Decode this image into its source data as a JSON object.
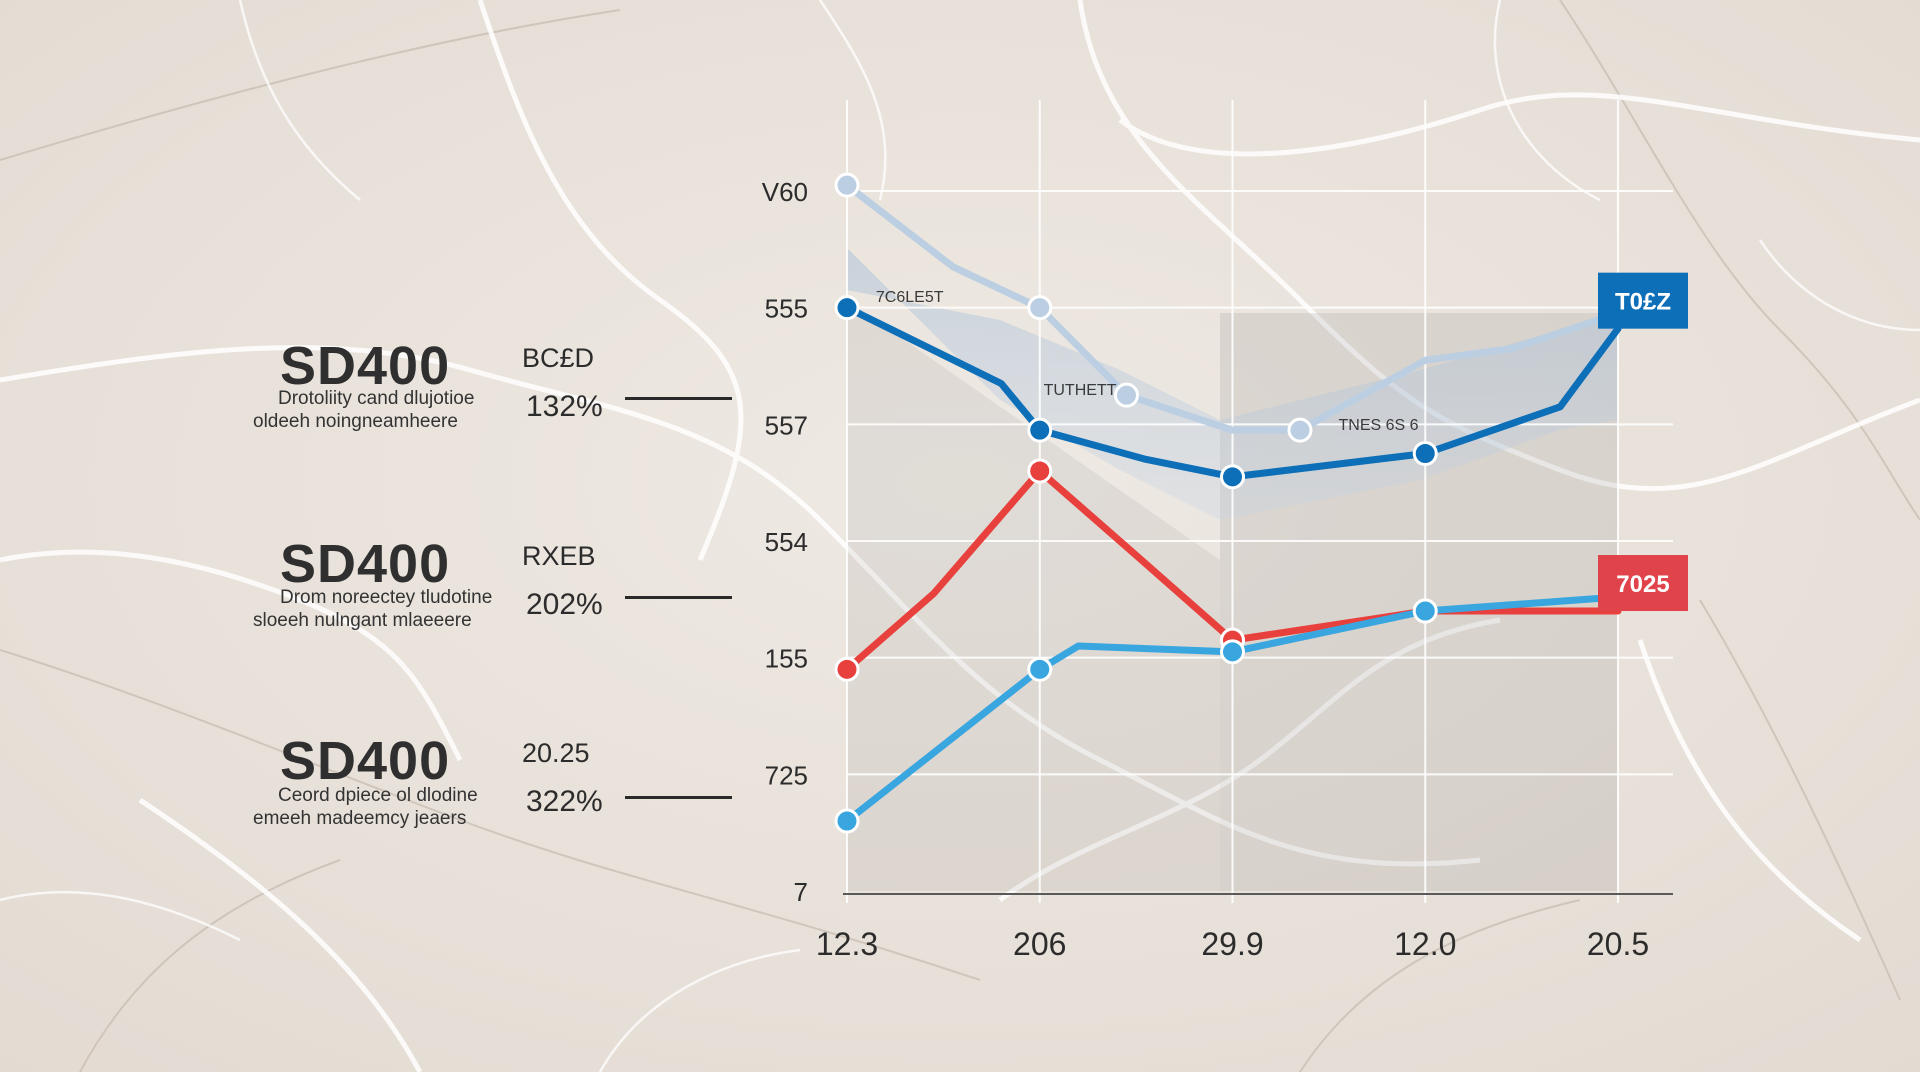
{
  "kpis": [
    {
      "title": "SD400",
      "code": "BC£D",
      "desc_line1": "Drotoliity cand dlujotioe",
      "desc_line2": "oldeeh noingneamheere",
      "percent": "132%"
    },
    {
      "title": "SD400",
      "code": "RXEB",
      "desc_line1": "Drom noreectey tludotine",
      "desc_line2": "sloeeh nulngant mlaeeere",
      "percent": "202%"
    },
    {
      "title": "SD400",
      "code": "20.25",
      "desc_line1": "Ceord dpiece ol dlodine",
      "desc_line2": "emeeh madeemcy jeaers",
      "percent": "322%"
    }
  ],
  "chart_data": {
    "type": "line",
    "title": "",
    "xlabel": "",
    "ylabel": "",
    "ylim": [
      0,
      6
    ],
    "y_ticks": [
      {
        "label": "7",
        "value": 0
      },
      {
        "label": "725",
        "value": 1
      },
      {
        "label": "155",
        "value": 2
      },
      {
        "label": "554",
        "value": 3
      },
      {
        "label": "557",
        "value": 4
      },
      {
        "label": "555",
        "value": 5
      },
      {
        "label": "V60",
        "value": 6
      }
    ],
    "categories": [
      "12.3",
      "206",
      "29.9",
      "12.0",
      "20.5"
    ],
    "x_ticks": [
      "12.3",
      "206",
      "29.9",
      "12.0",
      "20.5"
    ],
    "xlim": [
      0,
      4
    ],
    "grid": true,
    "series": [
      {
        "name": "light blue",
        "color": "#bccfe2",
        "x": [
          0,
          0.55,
          1,
          1.45,
          2,
          2.35,
          3,
          3.45,
          4
        ],
        "y": [
          6.05,
          5.35,
          5.0,
          4.25,
          3.95,
          3.95,
          4.55,
          4.65,
          4.95
        ],
        "markers": [
          0,
          2,
          3,
          5,
          8
        ]
      },
      {
        "name": "dark blue",
        "color": "#0d6fb8",
        "x": [
          0,
          0.8,
          1,
          1.55,
          2,
          3,
          3.7,
          4
        ],
        "y": [
          5.0,
          4.35,
          3.95,
          3.7,
          3.55,
          3.75,
          4.15,
          4.82
        ],
        "markers": [
          0,
          2,
          4,
          5
        ]
      },
      {
        "name": "red",
        "color": "#e8403c",
        "x": [
          0,
          0.45,
          1,
          1.45,
          2,
          3,
          4
        ],
        "y": [
          1.9,
          2.55,
          3.6,
          2.95,
          2.15,
          2.4,
          2.4
        ],
        "markers": [
          0,
          2,
          4,
          5
        ]
      },
      {
        "name": "sky blue",
        "color": "#3aa6e0",
        "x": [
          0,
          1,
          1.2,
          2,
          3,
          4
        ],
        "y": [
          0.6,
          1.9,
          2.1,
          2.05,
          2.4,
          2.52
        ],
        "markers": [
          0,
          1,
          3,
          4
        ]
      }
    ],
    "annotations": [
      {
        "text": "7C6LE5T",
        "x": 0.15,
        "y": 5.05
      },
      {
        "text": "TUTHETT",
        "x": 1.02,
        "y": 4.25
      },
      {
        "text": "TNES 6S 6",
        "x": 2.55,
        "y": 3.95
      }
    ],
    "end_labels": [
      {
        "text": "T0£Z",
        "series": "dark blue",
        "color": "#0d6fb8"
      },
      {
        "text": "7025",
        "series": "red",
        "color": "#e0444a"
      }
    ]
  }
}
